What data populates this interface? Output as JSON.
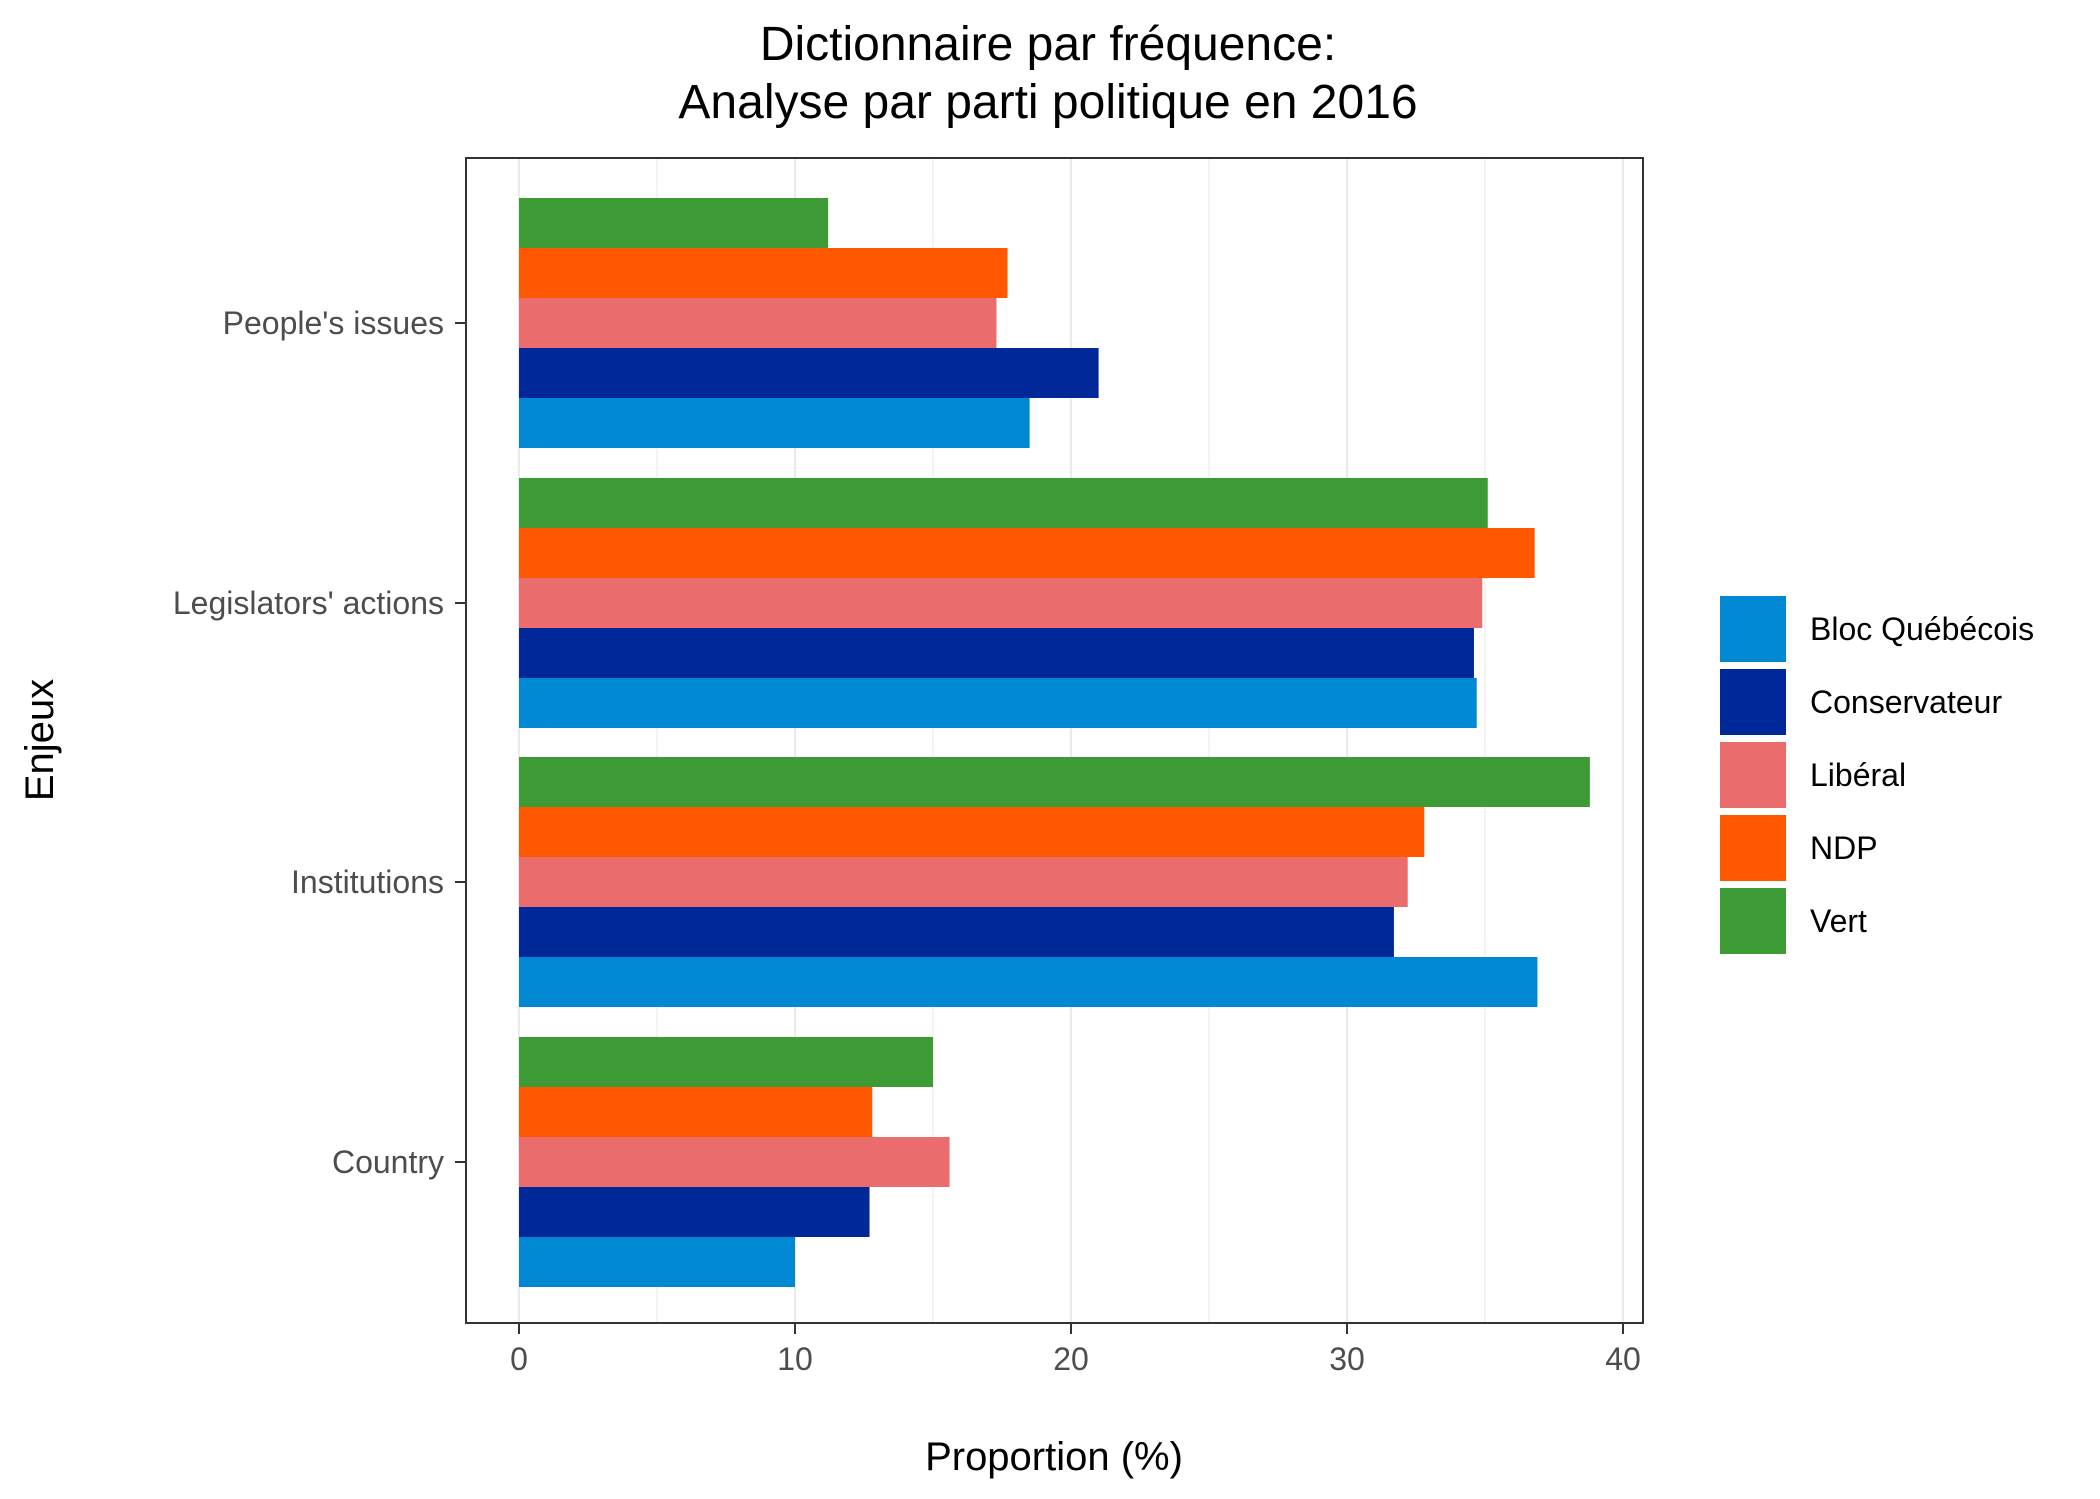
{
  "chart_data": {
    "type": "bar",
    "orientation": "horizontal",
    "title_lines": [
      "Dictionnaire par fréquence:",
      "Analyse par parti politique en 2016"
    ],
    "xlabel": "Proportion (%)",
    "ylabel": "Enjeux",
    "xlim": [
      0,
      40
    ],
    "xticks": [
      "0",
      "10",
      "20",
      "30",
      "40"
    ],
    "grid": true,
    "legend_position": "right",
    "categories": [
      "People's issues",
      "Legislators' actions",
      "Institutions",
      "Country"
    ],
    "series": [
      {
        "name": "Bloc Québécois",
        "color": "#0088D2",
        "values": [
          18.5,
          34.7,
          36.9,
          10.0
        ]
      },
      {
        "name": "Conservateur",
        "color": "#002899",
        "values": [
          21.0,
          34.6,
          31.7,
          12.7
        ]
      },
      {
        "name": "Libéral",
        "color": "#EB6C6C",
        "values": [
          17.3,
          34.9,
          32.2,
          15.6
        ]
      },
      {
        "name": "NDP",
        "color": "#FF5800",
        "values": [
          17.7,
          36.8,
          32.8,
          12.8
        ]
      },
      {
        "name": "Vert",
        "color": "#3D9B35",
        "values": [
          11.2,
          35.1,
          38.8,
          15.0
        ]
      }
    ]
  }
}
